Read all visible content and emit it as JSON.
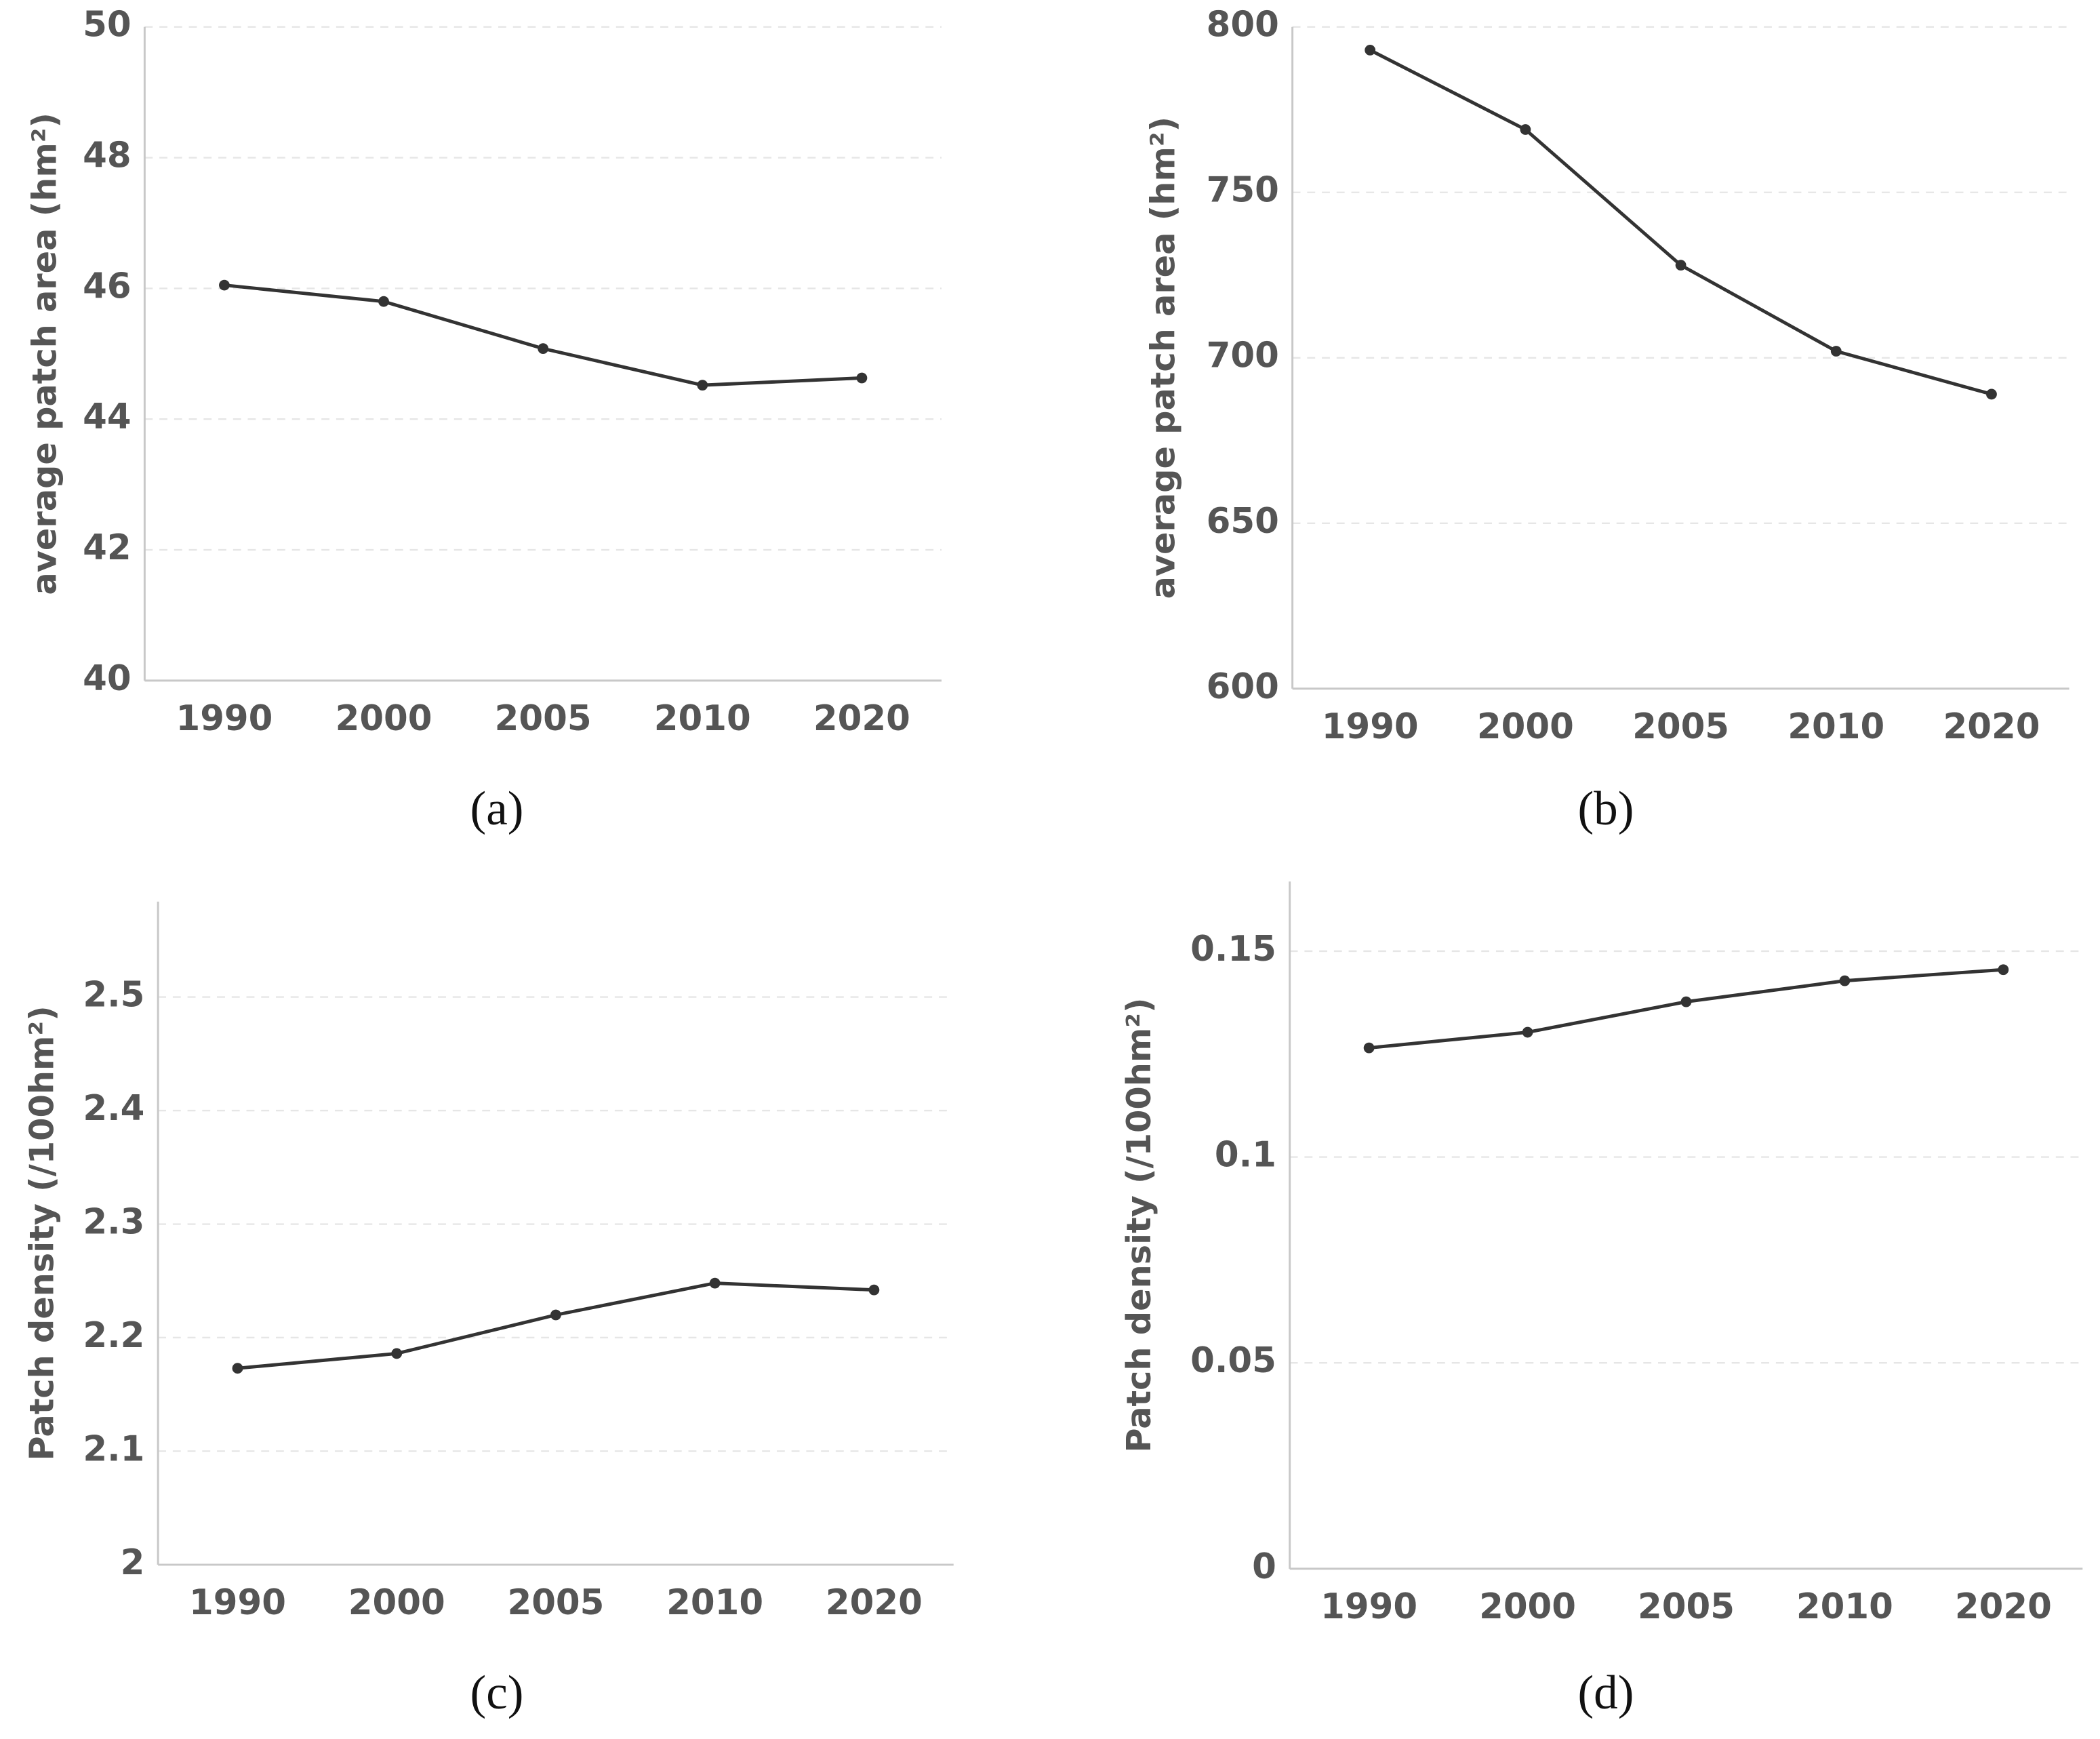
{
  "chart_data": [
    {
      "type": "line",
      "y_label": "average patch area (hm²)",
      "caption": "(a)",
      "categories": [
        "1990",
        "2000",
        "2005",
        "2010",
        "2020"
      ],
      "values": [
        46.05,
        45.8,
        45.08,
        44.52,
        44.63
      ],
      "color": "#333333",
      "ylim": [
        40,
        50
      ],
      "yticks": [
        40,
        42,
        44,
        46,
        48,
        50
      ],
      "grid": true
    },
    {
      "type": "line",
      "y_label": "average patch area (hm²)",
      "caption": "(b)",
      "categories": [
        "1990",
        "2000",
        "2005",
        "2010",
        "2020"
      ],
      "values": [
        793,
        769,
        728,
        702,
        689
      ],
      "color": "#333333",
      "ylim": [
        600,
        800
      ],
      "yticks": [
        600,
        650,
        700,
        750,
        800
      ],
      "grid": true
    },
    {
      "type": "line",
      "y_label": "Patch density (/100hm²)",
      "caption": "(c)",
      "categories": [
        "1990",
        "2000",
        "2005",
        "2010",
        "2020"
      ],
      "values": [
        2.173,
        2.186,
        2.22,
        2.248,
        2.242
      ],
      "color": "#333333",
      "ylim": [
        2,
        2.584
      ],
      "yticks": [
        2,
        2.1,
        2.2,
        2.3,
        2.4,
        2.5
      ],
      "grid": true
    },
    {
      "type": "line",
      "y_label": "Patch density (/100hm²)",
      "caption": "(d)",
      "categories": [
        "1990",
        "2000",
        "2005",
        "2010",
        "2020"
      ],
      "values": [
        0.1265,
        0.1303,
        0.1377,
        0.1428,
        0.1455
      ],
      "color": "#333333",
      "ylim": [
        0,
        0.1669
      ],
      "yticks": [
        0,
        0.05,
        0.1,
        0.15
      ],
      "grid": true
    }
  ]
}
